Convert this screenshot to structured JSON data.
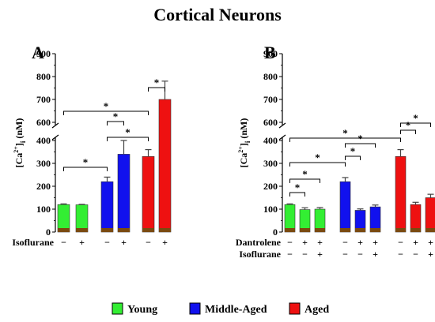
{
  "title": "Cortical Neurons",
  "colors": {
    "Young": "#33ee33",
    "Middle-Aged": "#1111ee",
    "Aged": "#ee1111",
    "base": "#7a4a10"
  },
  "legend": [
    "Young",
    "Middle-Aged",
    "Aged"
  ],
  "chart_data": [
    {
      "type": "bar",
      "panel": "A",
      "ylabel": "[Ca2+]i (nM)",
      "yticks": [
        0,
        100,
        200,
        300,
        400,
        600,
        700,
        800,
        900
      ],
      "axis_break": [
        400,
        600
      ],
      "row_labels": [
        "Isoflurane"
      ],
      "bars": [
        {
          "group": "Young",
          "value": 120,
          "error": 3,
          "conditions": [
            "−"
          ]
        },
        {
          "group": "Young",
          "value": 119,
          "error": 2,
          "conditions": [
            "+"
          ]
        },
        {
          "group": "Middle-Aged",
          "value": 220,
          "error": 20,
          "conditions": [
            "−"
          ]
        },
        {
          "group": "Middle-Aged",
          "value": 340,
          "error": 60,
          "conditions": [
            "+"
          ]
        },
        {
          "group": "Aged",
          "value": 330,
          "error": 30,
          "conditions": [
            "−"
          ]
        },
        {
          "group": "Aged",
          "value": 700,
          "error": 80,
          "conditions": [
            "+"
          ]
        }
      ],
      "significance": [
        {
          "from": 0,
          "to": 2,
          "label": "*"
        },
        {
          "from": 2,
          "to": 3,
          "label": "*"
        },
        {
          "from": 2,
          "to": 4,
          "label": "*"
        },
        {
          "from": 0,
          "to": 4,
          "label": "*"
        },
        {
          "from": 4,
          "to": 5,
          "label": "*"
        }
      ]
    },
    {
      "type": "bar",
      "panel": "B",
      "ylabel": "[Ca2+]i (nM)",
      "yticks": [
        0,
        100,
        200,
        300,
        400,
        600,
        700,
        800,
        900
      ],
      "axis_break": [
        400,
        600
      ],
      "row_labels": [
        "Dantrolene",
        "Isoflurane"
      ],
      "bars": [
        {
          "group": "Young",
          "value": 120,
          "error": 3,
          "conditions": [
            "−",
            "−"
          ]
        },
        {
          "group": "Young",
          "value": 98,
          "error": 8,
          "conditions": [
            "+",
            "−"
          ]
        },
        {
          "group": "Young",
          "value": 100,
          "error": 7,
          "conditions": [
            "+",
            "+"
          ]
        },
        {
          "group": "Middle-Aged",
          "value": 220,
          "error": 18,
          "conditions": [
            "−",
            "−"
          ]
        },
        {
          "group": "Middle-Aged",
          "value": 95,
          "error": 6,
          "conditions": [
            "+",
            "−"
          ]
        },
        {
          "group": "Middle-Aged",
          "value": 110,
          "error": 8,
          "conditions": [
            "+",
            "+"
          ]
        },
        {
          "group": "Aged",
          "value": 330,
          "error": 30,
          "conditions": [
            "−",
            "−"
          ]
        },
        {
          "group": "Aged",
          "value": 120,
          "error": 10,
          "conditions": [
            "+",
            "−"
          ]
        },
        {
          "group": "Aged",
          "value": 150,
          "error": 15,
          "conditions": [
            "+",
            "+"
          ]
        }
      ],
      "significance": [
        {
          "from": 0,
          "to": 1,
          "label": "*"
        },
        {
          "from": 0,
          "to": 2,
          "label": "*"
        },
        {
          "from": 0,
          "to": 3,
          "label": "*"
        },
        {
          "from": 3,
          "to": 4,
          "label": "*"
        },
        {
          "from": 3,
          "to": 5,
          "label": "*"
        },
        {
          "from": 0,
          "to": 6,
          "label": "*"
        },
        {
          "from": 6,
          "to": 7,
          "label": "*"
        },
        {
          "from": 6,
          "to": 8,
          "label": "*"
        }
      ]
    }
  ]
}
